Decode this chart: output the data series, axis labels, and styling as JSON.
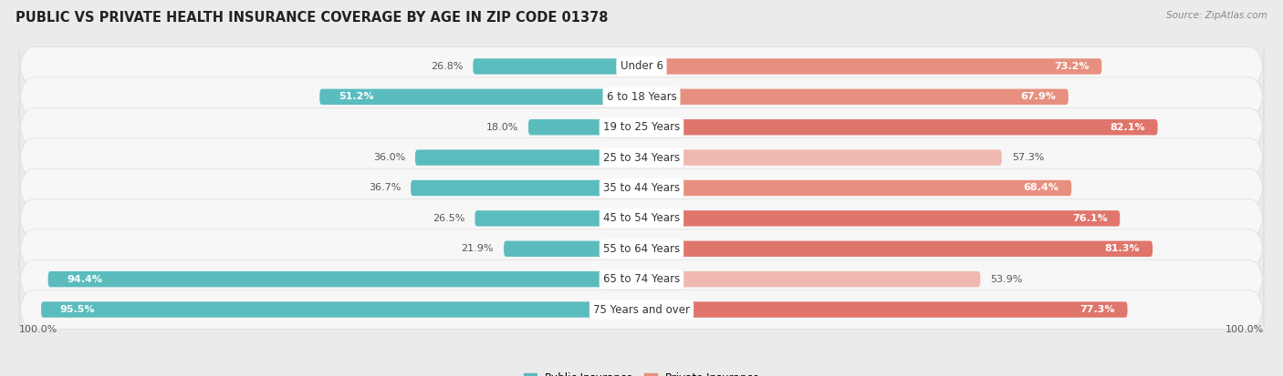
{
  "title": "PUBLIC VS PRIVATE HEALTH INSURANCE COVERAGE BY AGE IN ZIP CODE 01378",
  "source": "Source: ZipAtlas.com",
  "categories": [
    "Under 6",
    "6 to 18 Years",
    "19 to 25 Years",
    "25 to 34 Years",
    "35 to 44 Years",
    "45 to 54 Years",
    "55 to 64 Years",
    "65 to 74 Years",
    "75 Years and over"
  ],
  "public_values": [
    26.8,
    51.2,
    18.0,
    36.0,
    36.7,
    26.5,
    21.9,
    94.4,
    95.5
  ],
  "private_values": [
    73.2,
    67.9,
    82.1,
    57.3,
    68.4,
    76.1,
    81.3,
    53.9,
    77.3
  ],
  "public_color": "#5bbcbe",
  "private_color_strong": "#e0756b",
  "private_color_medium": "#e8907f",
  "private_color_light": "#efb8b0",
  "bg_color": "#ebebeb",
  "row_bg_color": "#f7f7f7",
  "row_border_color": "#dddddd",
  "title_fontsize": 10.5,
  "bar_label_fontsize": 8,
  "cat_label_fontsize": 8.5,
  "legend_fontsize": 8.5,
  "private_strong_threshold": 75,
  "private_inside_threshold": 60
}
